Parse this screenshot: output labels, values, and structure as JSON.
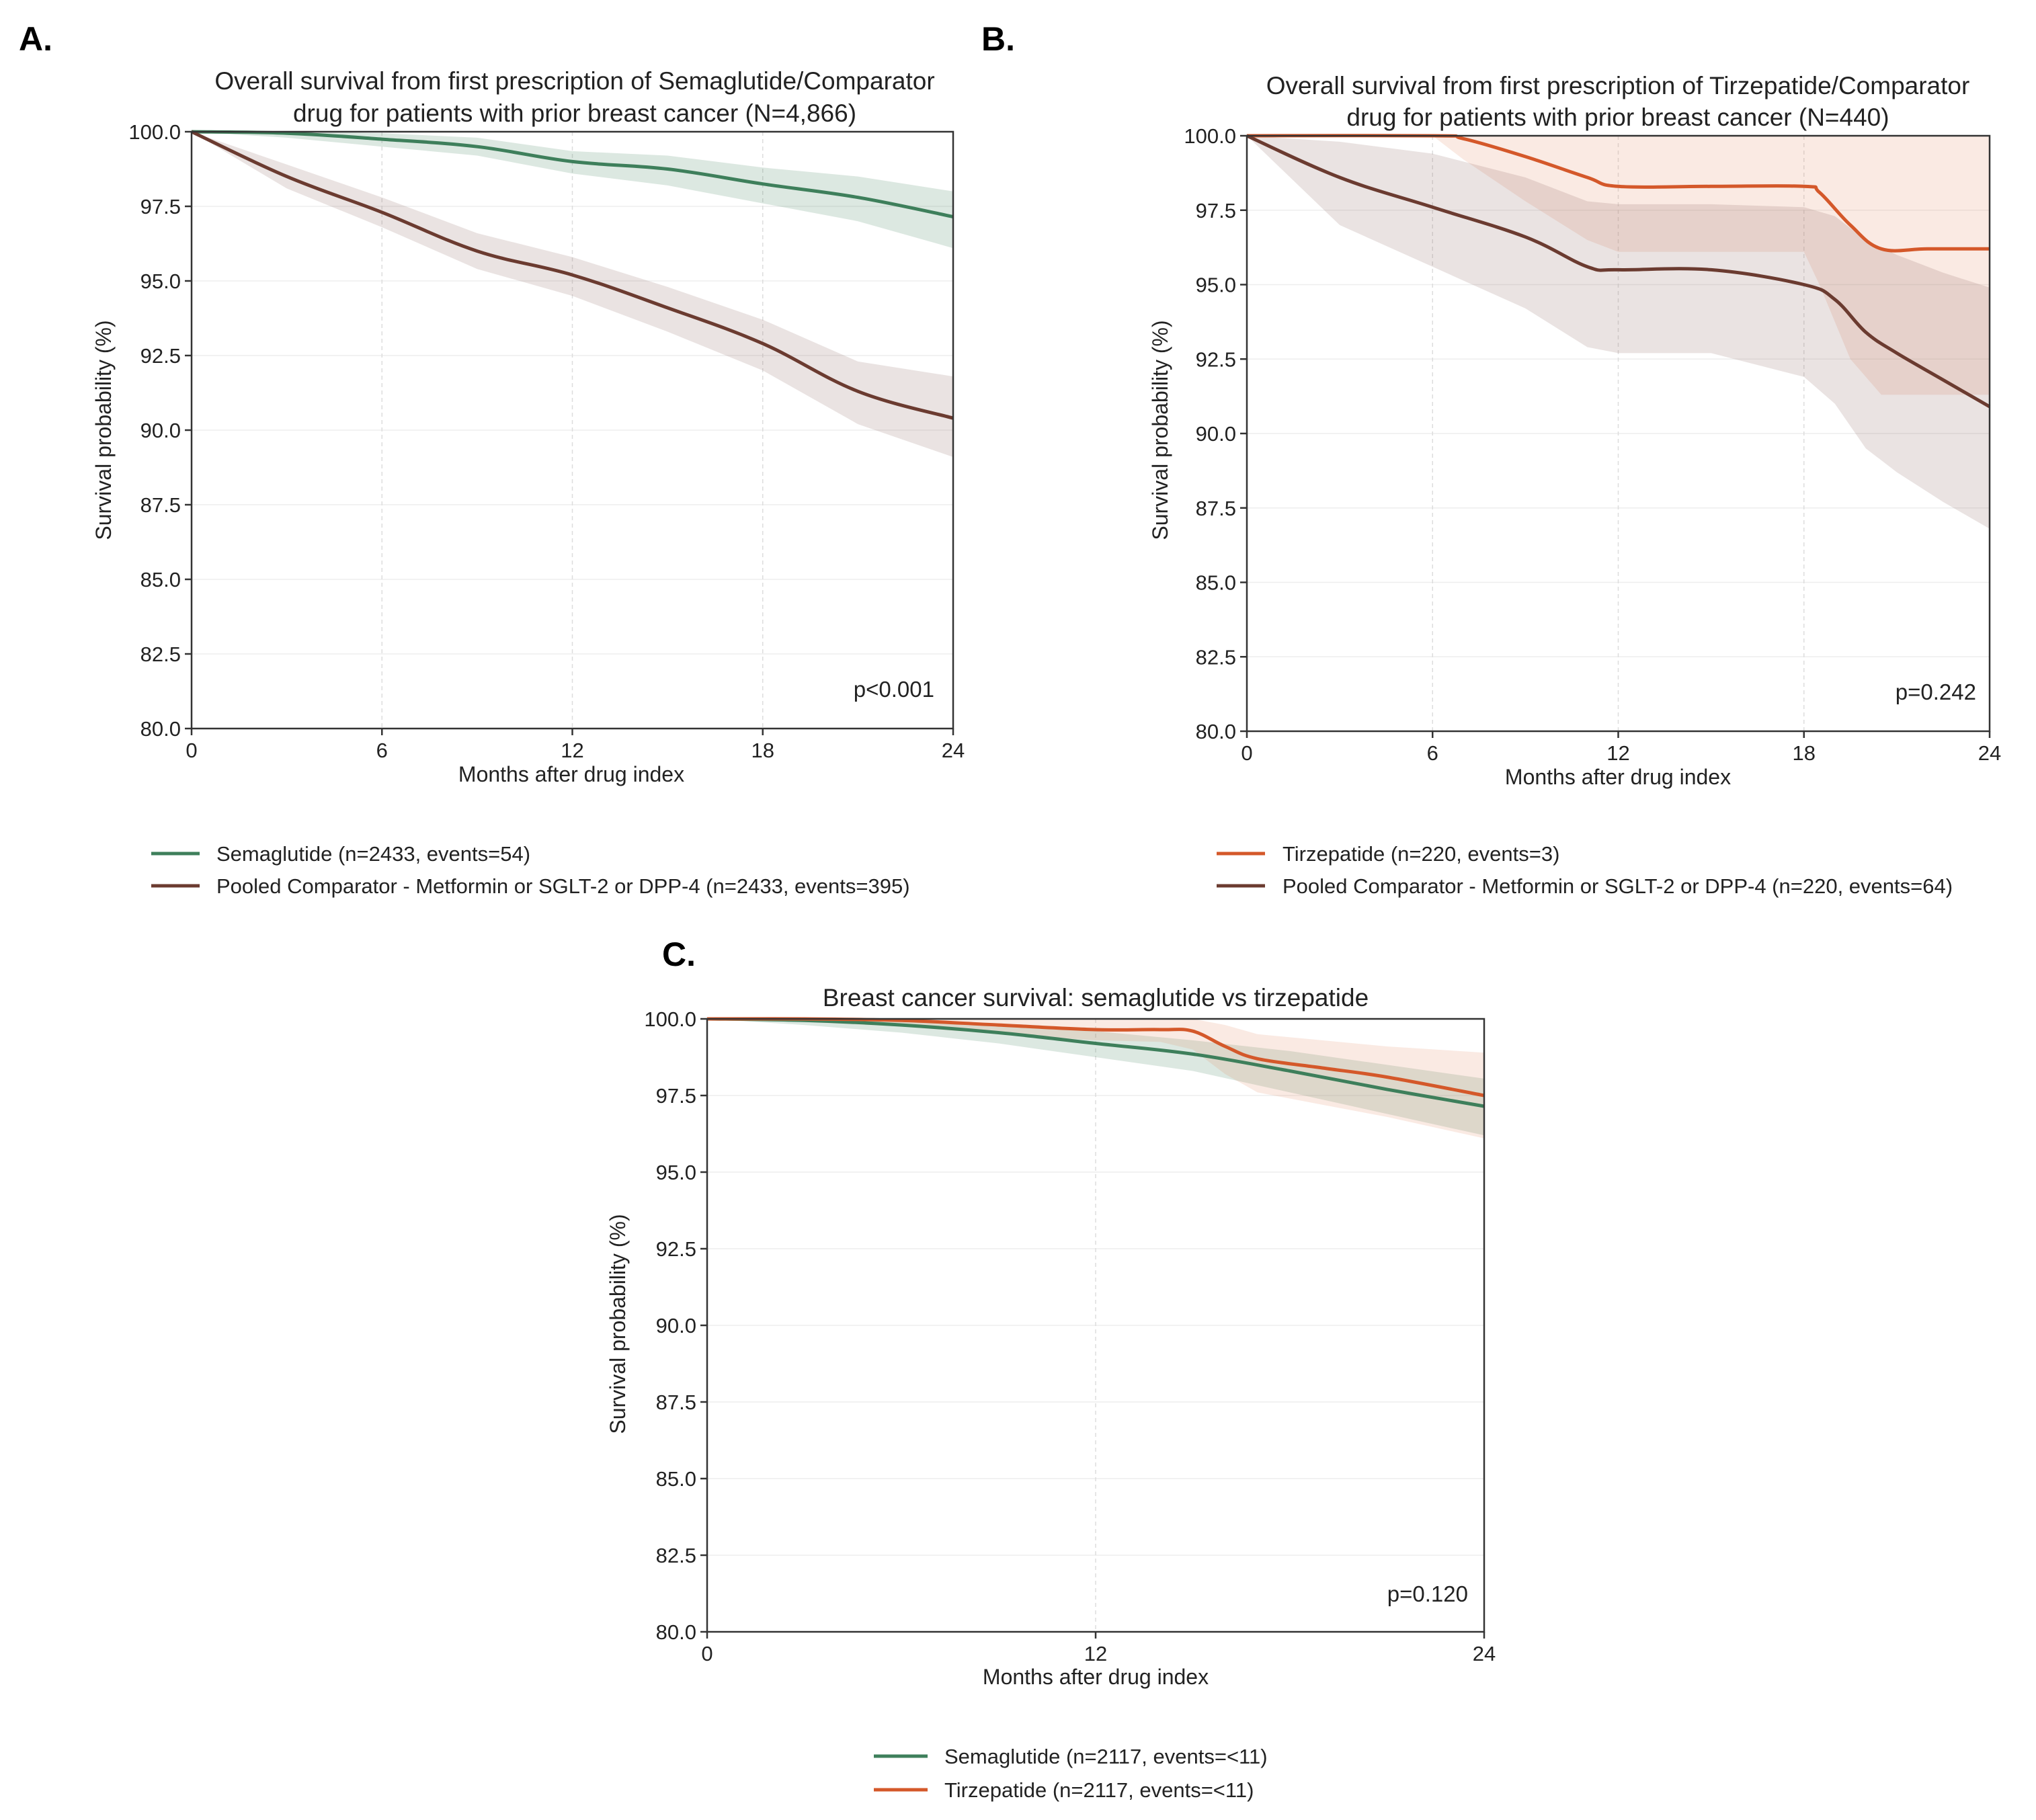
{
  "colors": {
    "semaglutide": "#3e7f5b",
    "comparator": "#6b3b30",
    "tirzepatide": "#d4582a",
    "semaglutide_band": "#3e7f5b",
    "comparator_band": "#8b6660",
    "tirzepatide_band": "#e58a66"
  },
  "chart_data": [
    {
      "panel": "A.",
      "type": "line",
      "title_lines": [
        "Overall survival from first prescription of Semaglutide/Comparator",
        "drug for patients with prior breast cancer (N=4,866)"
      ],
      "xlabel": "Months after drug index",
      "ylabel": "Survival probability (%)",
      "xlim": [
        0,
        24
      ],
      "ylim": [
        80,
        100
      ],
      "xticks": [
        0,
        6,
        12,
        18,
        24
      ],
      "yticks": [
        80.0,
        82.5,
        85.0,
        87.5,
        90.0,
        92.5,
        95.0,
        97.5,
        100.0
      ],
      "ytick_labels": [
        "80.0",
        "82.5",
        "85.0",
        "87.5",
        "90.0",
        "92.5",
        "95.0",
        "97.5",
        "100.0"
      ],
      "grid": true,
      "annotation": "p<0.001",
      "legend_position": "below",
      "series": [
        {
          "name": "Semaglutide (n=2433, events=54)",
          "color_key": "semaglutide",
          "x": [
            0,
            3,
            6,
            9,
            12,
            15,
            18,
            21,
            24
          ],
          "y": [
            100.0,
            99.95,
            99.75,
            99.5,
            99.0,
            98.75,
            98.25,
            97.8,
            97.15
          ],
          "ci_lower": [
            100.0,
            99.8,
            99.5,
            99.2,
            98.6,
            98.2,
            97.6,
            97.0,
            96.1
          ],
          "ci_upper": [
            100.0,
            100.0,
            99.95,
            99.8,
            99.35,
            99.2,
            98.8,
            98.5,
            98.0
          ]
        },
        {
          "name": "Pooled Comparator - Metformin or SGLT-2 or DPP-4 (n=2433, events=395)",
          "color_key": "comparator",
          "x": [
            0,
            3,
            6,
            9,
            12,
            15,
            18,
            21,
            24
          ],
          "y": [
            100.0,
            98.5,
            97.3,
            96.0,
            95.2,
            94.1,
            92.9,
            91.3,
            90.4
          ],
          "ci_lower": [
            100.0,
            98.1,
            96.8,
            95.4,
            94.5,
            93.3,
            92.0,
            90.2,
            89.1
          ],
          "ci_upper": [
            100.0,
            98.9,
            97.8,
            96.6,
            95.8,
            94.8,
            93.7,
            92.3,
            91.8
          ]
        }
      ]
    },
    {
      "panel": "B.",
      "type": "line",
      "title_lines": [
        "Overall survival from first prescription of Tirzepatide/Comparator",
        "drug for patients with prior breast cancer (N=440)"
      ],
      "xlabel": "Months after drug index",
      "ylabel": "Survival probability (%)",
      "xlim": [
        0,
        24
      ],
      "ylim": [
        80,
        100
      ],
      "xticks": [
        0,
        6,
        12,
        18,
        24
      ],
      "yticks": [
        80.0,
        82.5,
        85.0,
        87.5,
        90.0,
        92.5,
        95.0,
        97.5,
        100.0
      ],
      "ytick_labels": [
        "80.0",
        "82.5",
        "85.0",
        "87.5",
        "90.0",
        "92.5",
        "95.0",
        "97.5",
        "100.0"
      ],
      "grid": true,
      "annotation": "p=0.242",
      "legend_position": "below",
      "series": [
        {
          "name": "Tirzepatide (n=220, events=3)",
          "color_key": "tirzepatide",
          "x": [
            0,
            6,
            7,
            9,
            11,
            12,
            15,
            18,
            18.5,
            19.5,
            20.5,
            22,
            24
          ],
          "y": [
            100.0,
            100.0,
            99.9,
            99.3,
            98.6,
            98.3,
            98.3,
            98.3,
            98.1,
            97.0,
            96.2,
            96.2,
            96.2
          ],
          "ci_lower": [
            100.0,
            100.0,
            99.2,
            97.8,
            96.5,
            96.1,
            96.1,
            96.1,
            95.0,
            92.5,
            91.3,
            91.3,
            91.3
          ],
          "ci_upper": [
            100.0,
            100.0,
            100.0,
            100.0,
            100.0,
            100.0,
            100.0,
            100.0,
            100.0,
            100.0,
            100.0,
            100.0,
            100.0
          ]
        },
        {
          "name": "Pooled Comparator - Metformin or SGLT-2 or DPP-4 (n=220, events=64)",
          "color_key": "comparator",
          "x": [
            0,
            3,
            6,
            9,
            11,
            12,
            15,
            18,
            19,
            20,
            21,
            22.5,
            24
          ],
          "y": [
            100.0,
            98.6,
            97.6,
            96.6,
            95.6,
            95.5,
            95.5,
            95.0,
            94.5,
            93.4,
            92.7,
            91.8,
            90.9
          ],
          "ci_lower": [
            100.0,
            97.0,
            95.6,
            94.2,
            92.9,
            92.7,
            92.7,
            91.9,
            91.0,
            89.5,
            88.7,
            87.7,
            86.8
          ],
          "ci_upper": [
            100.0,
            99.8,
            99.4,
            98.6,
            97.8,
            97.7,
            97.7,
            97.6,
            97.3,
            96.5,
            96.0,
            95.4,
            94.9
          ]
        }
      ]
    },
    {
      "panel": "C.",
      "type": "line",
      "title_lines": [
        "Breast cancer survival: semaglutide vs tirzepatide"
      ],
      "xlabel": "Months after drug index",
      "ylabel": "Survival probability (%)",
      "xlim": [
        0,
        24
      ],
      "ylim": [
        80,
        100
      ],
      "xticks": [
        0,
        12,
        24
      ],
      "yticks": [
        80.0,
        82.5,
        85.0,
        87.5,
        90.0,
        92.5,
        95.0,
        97.5,
        100.0
      ],
      "ytick_labels": [
        "80.0",
        "82.5",
        "85.0",
        "87.5",
        "90.0",
        "92.5",
        "95.0",
        "97.5",
        "100.0"
      ],
      "grid": true,
      "annotation": "p=0.120",
      "legend_position": "below",
      "series": [
        {
          "name": "Semaglutide (n=2117, events=<11)",
          "color_key": "semaglutide",
          "x": [
            0,
            3,
            6,
            9,
            12,
            15,
            18,
            21,
            24
          ],
          "y": [
            100.0,
            99.95,
            99.8,
            99.55,
            99.2,
            98.85,
            98.3,
            97.7,
            97.15
          ],
          "ci_lower": [
            100.0,
            99.8,
            99.55,
            99.2,
            98.75,
            98.3,
            97.6,
            96.9,
            96.2
          ],
          "ci_upper": [
            100.0,
            100.0,
            99.95,
            99.85,
            99.6,
            99.3,
            98.95,
            98.5,
            98.05
          ]
        },
        {
          "name": "Tirzepatide (n=2117, events=<11)",
          "color_key": "tirzepatide",
          "x": [
            0,
            3,
            6,
            9,
            12,
            14,
            15,
            16,
            17,
            19,
            21,
            24
          ],
          "y": [
            100.0,
            100.0,
            99.95,
            99.8,
            99.65,
            99.65,
            99.6,
            99.1,
            98.7,
            98.4,
            98.1,
            97.5
          ],
          "ci_lower": [
            100.0,
            99.9,
            99.75,
            99.5,
            99.3,
            99.25,
            99.0,
            98.2,
            97.6,
            97.2,
            96.8,
            96.1
          ],
          "ci_upper": [
            100.0,
            100.0,
            100.0,
            100.0,
            100.0,
            100.0,
            100.0,
            99.8,
            99.5,
            99.3,
            99.1,
            98.9
          ]
        }
      ]
    }
  ]
}
